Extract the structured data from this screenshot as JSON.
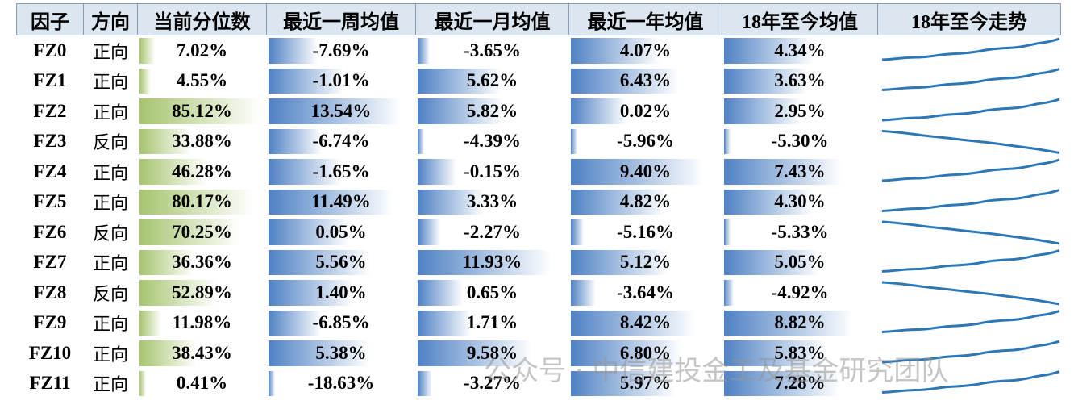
{
  "headers": [
    "因子",
    "方向",
    "当前分位数",
    "最近一周均值",
    "最近一月均值",
    "最近一年均值",
    "18年至今均值",
    "18年至今走势"
  ],
  "rows": [
    [
      "FZ0",
      "正向",
      "7.02%",
      "-7.69%",
      "-3.65%",
      "4.07%",
      "4.34%"
    ],
    [
      "FZ1",
      "正向",
      "4.55%",
      "-1.01%",
      "5.62%",
      "6.43%",
      "3.63%"
    ],
    [
      "FZ2",
      "正向",
      "85.12%",
      "13.54%",
      "5.82%",
      "0.02%",
      "2.95%"
    ],
    [
      "FZ3",
      "反向",
      "33.88%",
      "-6.74%",
      "-4.39%",
      "-5.96%",
      "-5.30%"
    ],
    [
      "FZ4",
      "正向",
      "46.28%",
      "-1.65%",
      "-0.15%",
      "9.40%",
      "7.43%"
    ],
    [
      "FZ5",
      "正向",
      "80.17%",
      "11.49%",
      "3.33%",
      "4.82%",
      "4.30%"
    ],
    [
      "FZ6",
      "反向",
      "70.25%",
      "0.05%",
      "-2.27%",
      "-5.16%",
      "-5.33%"
    ],
    [
      "FZ7",
      "正向",
      "36.36%",
      "5.56%",
      "11.93%",
      "5.12%",
      "5.05%"
    ],
    [
      "FZ8",
      "反向",
      "52.89%",
      "1.40%",
      "0.65%",
      "-3.64%",
      "-4.92%"
    ],
    [
      "FZ9",
      "正向",
      "11.98%",
      "-6.85%",
      "1.71%",
      "8.42%",
      "8.82%"
    ],
    [
      "FZ10",
      "正向",
      "38.43%",
      "5.38%",
      "9.58%",
      "6.80%",
      "5.83%"
    ],
    [
      "FZ11",
      "正向",
      "0.41%",
      "-18.63%",
      "-3.27%",
      "5.97%",
      "7.28%"
    ]
  ],
  "watermark": "公众号 · 中信建投金工及基金研究团队"
}
